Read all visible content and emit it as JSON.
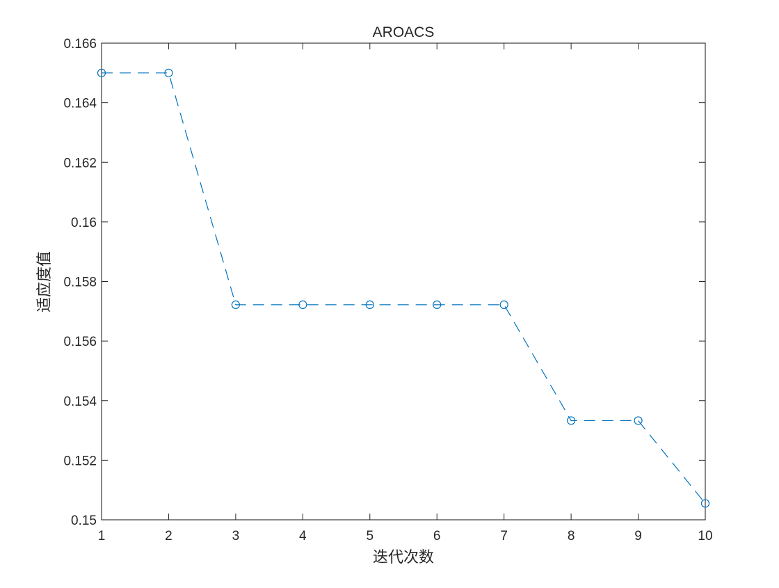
{
  "chart_data": {
    "type": "line",
    "title": "AROACS",
    "xlabel": "迭代次数",
    "ylabel": "适应度值",
    "x": [
      1,
      2,
      3,
      4,
      5,
      6,
      7,
      8,
      9,
      10
    ],
    "series": [
      {
        "values": [
          0.165,
          0.165,
          0.15722,
          0.15722,
          0.15722,
          0.15722,
          0.15722,
          0.15333,
          0.15333,
          0.15055
        ],
        "line_style": "dashed",
        "marker": "circle",
        "color": "#0072BD"
      }
    ],
    "xlim": [
      1,
      10
    ],
    "ylim": [
      0.15,
      0.166
    ],
    "x_ticks": [
      "1",
      "2",
      "3",
      "4",
      "5",
      "6",
      "7",
      "8",
      "9",
      "10"
    ],
    "y_ticks": [
      "0.15",
      "0.152",
      "0.154",
      "0.156",
      "0.158",
      "0.16",
      "0.162",
      "0.164",
      "0.166"
    ],
    "grid": false,
    "legend": "none",
    "axis_color": "#262626"
  }
}
